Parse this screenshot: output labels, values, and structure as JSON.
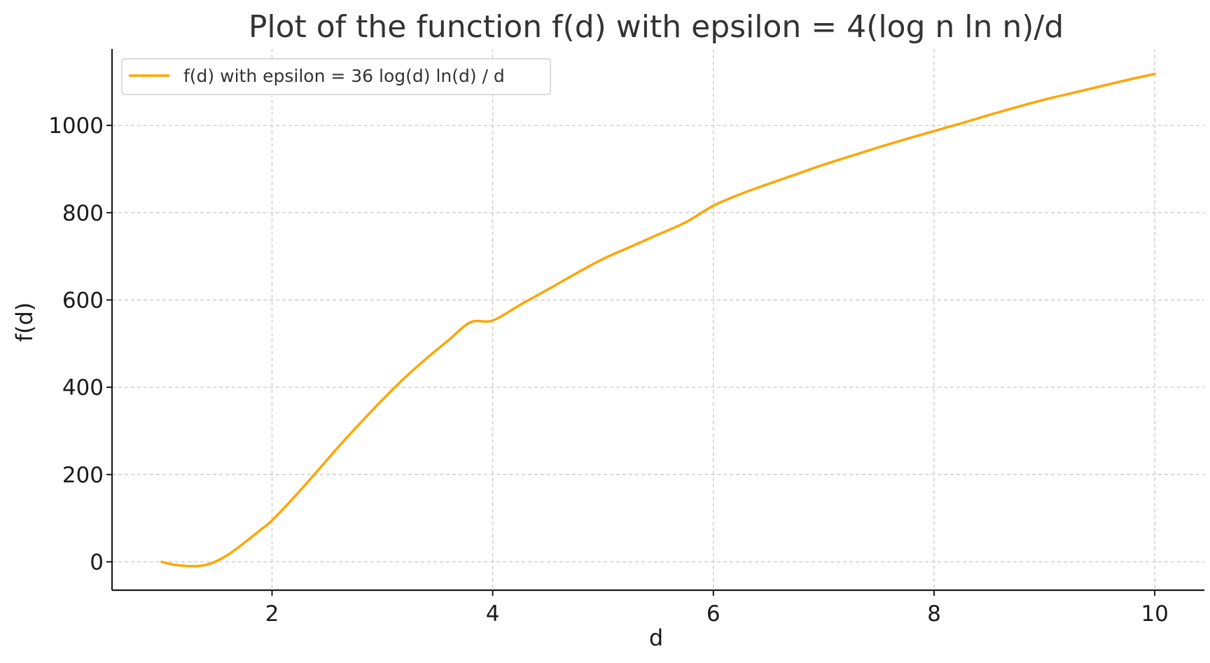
{
  "chart_data": {
    "type": "line",
    "title": "Plot of the function f(d) with epsilon = 4(log n ln n)/d",
    "xlabel": "d",
    "ylabel": "f(d)",
    "xlim": [
      0.55,
      10.45
    ],
    "ylim": [
      -65,
      1175
    ],
    "x_ticks": [
      2,
      4,
      6,
      8,
      10
    ],
    "x_tick_labels": [
      "2",
      "4",
      "6",
      "8",
      "10"
    ],
    "y_ticks": [
      0,
      200,
      400,
      600,
      800,
      1000
    ],
    "y_tick_labels": [
      "0",
      "200",
      "400",
      "600",
      "800",
      "1000"
    ],
    "grid": true,
    "legend_position": "top-left",
    "series": [
      {
        "name": "f(d) with epsilon = 36 log(d) ln(d) / d",
        "color": "#FFA500",
        "x": [
          1.0,
          1.1,
          1.2,
          1.3,
          1.4,
          1.5,
          1.6,
          1.7,
          1.8,
          1.9,
          2.0,
          2.2,
          2.4,
          2.6,
          2.8,
          3.0,
          3.2,
          3.4,
          3.6,
          3.8,
          4.0,
          4.25,
          4.5,
          4.75,
          5.0,
          5.25,
          5.5,
          5.75,
          6.0,
          6.25,
          6.5,
          6.75,
          7.0,
          7.25,
          7.5,
          7.75,
          8.0,
          8.25,
          8.5,
          8.75,
          9.0,
          9.25,
          9.5,
          9.75,
          10.0
        ],
        "y": [
          0,
          -6,
          -9,
          -10,
          -7,
          2,
          16,
          34,
          54,
          74,
          95,
          148,
          205,
          263,
          318,
          371,
          421,
          466,
          508,
          549,
          553,
          589,
          624,
          660,
          694,
          722,
          750,
          778,
          816,
          843,
          866,
          888,
          910,
          930,
          950,
          969,
          987,
          1005,
          1024,
          1042,
          1059,
          1074,
          1089,
          1104,
          1118
        ]
      }
    ]
  }
}
